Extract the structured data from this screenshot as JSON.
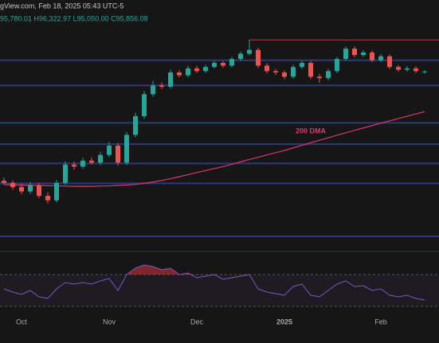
{
  "chart_data": {
    "type": "candlestick",
    "header": [
      "gView.com, Feb 18, 2025 05:43 UTC-5",
      "95,780.01 H96,322.97 L95,050.00 C95,856.08"
    ],
    "categories": [
      null,
      null,
      "Oct",
      null,
      null,
      null,
      null,
      null,
      null,
      null,
      null,
      null,
      "Nov",
      null,
      null,
      null,
      null,
      null,
      null,
      null,
      null,
      null,
      "Dec",
      null,
      null,
      null,
      null,
      null,
      null,
      null,
      null,
      null,
      "2025",
      null,
      null,
      null,
      null,
      null,
      null,
      null,
      null,
      null,
      null,
      "Feb",
      null,
      null,
      null,
      null,
      null
    ],
    "open": [
      63500,
      63000,
      62000,
      61000,
      62500,
      60000,
      59000,
      63000,
      67500,
      67000,
      68500,
      68000,
      70000,
      72500,
      68000,
      75500,
      81000,
      88000,
      91000,
      90500,
      95500,
      94500,
      97000,
      96000,
      97500,
      99000,
      98000,
      100500,
      102500,
      104000,
      98000,
      96000,
      95500,
      94000,
      97500,
      99000,
      94000,
      93500,
      96000,
      100500,
      104500,
      102000,
      103000,
      100000,
      101500,
      97500,
      96500,
      97000,
      95780.01
    ],
    "high": [
      64300,
      63600,
      62700,
      63200,
      63000,
      60800,
      63700,
      68300,
      68300,
      69200,
      69300,
      70800,
      73500,
      73200,
      76300,
      82000,
      89000,
      92500,
      92000,
      96500,
      96400,
      98000,
      98000,
      98300,
      99800,
      99700,
      101300,
      103300,
      108000,
      104800,
      98900,
      96800,
      96300,
      98300,
      99900,
      99800,
      95000,
      96800,
      101300,
      105300,
      105400,
      103900,
      103700,
      102300,
      102200,
      98300,
      97800,
      97800,
      96322.97
    ],
    "low": [
      62500,
      61400,
      60400,
      60500,
      59500,
      58300,
      58500,
      62500,
      66200,
      66400,
      67500,
      67400,
      69400,
      67200,
      67400,
      74800,
      80200,
      87200,
      89800,
      89900,
      93800,
      93900,
      95300,
      95400,
      97000,
      97200,
      97300,
      99800,
      101800,
      97100,
      95200,
      94600,
      93100,
      93300,
      96800,
      93200,
      91800,
      92800,
      95300,
      99800,
      101200,
      101300,
      99200,
      99300,
      96700,
      95800,
      95800,
      95300,
      95050
    ],
    "close": [
      63000,
      62000,
      61000,
      62500,
      60000,
      59000,
      63000,
      67500,
      67000,
      68500,
      68000,
      70000,
      72500,
      68000,
      75500,
      81000,
      88000,
      91000,
      90500,
      95500,
      94500,
      97000,
      96000,
      97500,
      99000,
      98000,
      100500,
      102500,
      104000,
      98000,
      96000,
      95500,
      94000,
      97500,
      99000,
      94000,
      93500,
      96000,
      100500,
      104500,
      102000,
      103000,
      100000,
      101500,
      97500,
      96500,
      97000,
      96000,
      95856.08
    ],
    "up_color": "#26a69a",
    "down_color": "#ef5350",
    "series": [
      {
        "name": "200 DMA",
        "color": "#e0356f",
        "values": [
          62600,
          62550,
          62500,
          62450,
          62400,
          62350,
          62300,
          62250,
          62200,
          62200,
          62200,
          62250,
          62300,
          62400,
          62500,
          62650,
          62900,
          63200,
          63600,
          64000,
          64500,
          65000,
          65500,
          66000,
          66500,
          67000,
          67600,
          68200,
          68800,
          69400,
          70000,
          70600,
          71200,
          71900,
          72600,
          73300,
          74000,
          74700,
          75400,
          76100,
          76800,
          77500,
          78200,
          78900,
          79600,
          80300,
          81000,
          81700,
          82400
        ]
      }
    ],
    "levels": [
      100000,
      91000,
      79000,
      72900,
      67800,
      62900,
      51500
    ],
    "level_color": "#2b3a78",
    "resistance": 108000,
    "resistance_color": "#c0343c",
    "ylim": [
      48800,
      125500
    ],
    "log_scale": true,
    "rsi": {
      "color": "#7e57c2",
      "ylim": [
        20,
        90
      ],
      "levels": [
        70,
        30
      ],
      "overbought_color": "#c0343c",
      "values": [
        52,
        48,
        45,
        50,
        42,
        40,
        52,
        60,
        58,
        60,
        58,
        62,
        65,
        50,
        70,
        78,
        82,
        80,
        76,
        78,
        70,
        72,
        66,
        68,
        70,
        64,
        66,
        68,
        70,
        52,
        48,
        46,
        44,
        55,
        58,
        44,
        42,
        50,
        58,
        62,
        55,
        56,
        50,
        52,
        44,
        42,
        44,
        40,
        38
      ]
    }
  }
}
